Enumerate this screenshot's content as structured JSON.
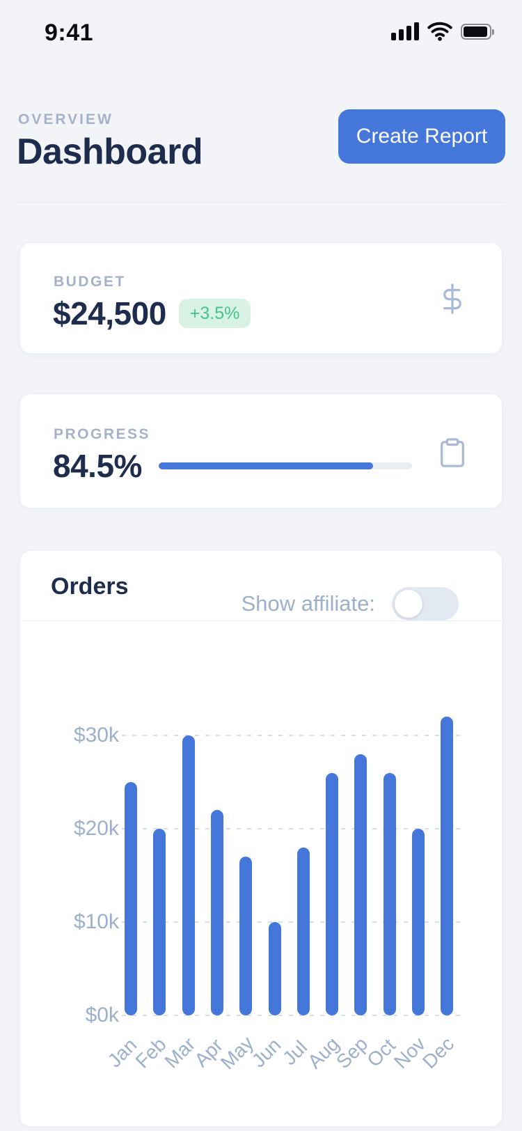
{
  "status_bar": {
    "time": "9:41"
  },
  "header": {
    "eyebrow": "OVERVIEW",
    "title": "Dashboard",
    "create_report_label": "Create Report"
  },
  "budget_card": {
    "label": "BUDGET",
    "value": "$24,500",
    "delta": "+3.5%"
  },
  "progress_card": {
    "label": "PROGRESS",
    "value": "84.5%",
    "percent": 84.5
  },
  "orders_card": {
    "title": "Orders",
    "toggle_label": "Show affiliate:",
    "toggle_on": false
  },
  "chart_data": {
    "type": "bar",
    "title": "Orders",
    "categories": [
      "Jan",
      "Feb",
      "Mar",
      "Apr",
      "May",
      "Jun",
      "Jul",
      "Aug",
      "Sep",
      "Oct",
      "Nov",
      "Dec"
    ],
    "values": [
      25,
      20,
      30,
      22,
      17,
      10,
      18,
      26,
      28,
      26,
      20,
      32
    ],
    "unit": "thousands_usd",
    "xlabel": "",
    "ylabel": "",
    "y_ticks": [
      {
        "label": "$30k",
        "value": 30
      },
      {
        "label": "$20k",
        "value": 20
      },
      {
        "label": "$10k",
        "value": 10
      },
      {
        "label": "$0k",
        "value": 0
      }
    ],
    "ylim": [
      0,
      33.5
    ],
    "grid": "horizontal-dotted",
    "legend": "none",
    "bar_color": "#4577db",
    "x_label_rotation": -45
  },
  "colors": {
    "background": "#f2f4f8",
    "card": "#ffffff",
    "accent_blue": "#4577db",
    "navy": "#1e2c4e",
    "muted_label": "#a5b2c9",
    "secondary_text": "#9cb0cc",
    "green_text": "#45c388",
    "green_bg": "#d8f3e6"
  }
}
